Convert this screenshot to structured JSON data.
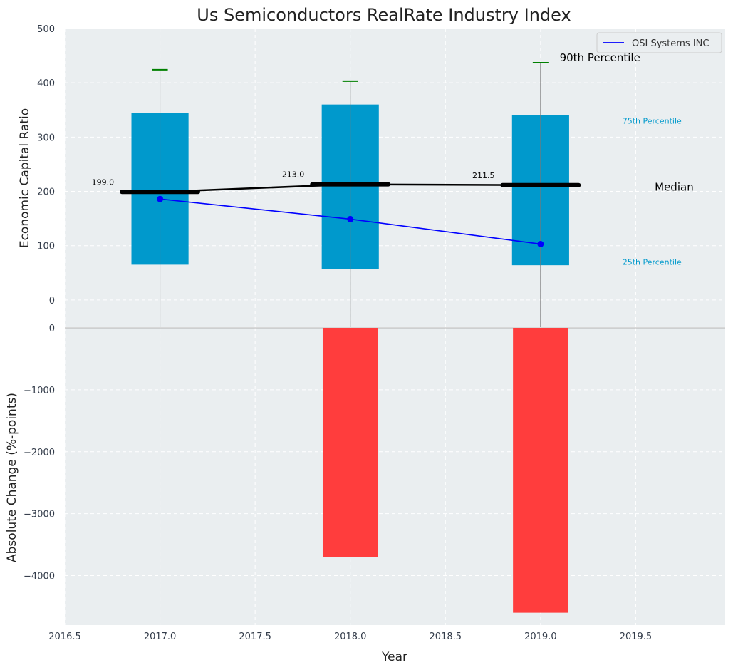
{
  "chart_data": {
    "type": "bar",
    "title": "Us Semiconductors RealRate Industry Index",
    "xlabel": "Year",
    "x_ticks": [
      "2016.5",
      "2017.0",
      "2017.5",
      "2018.0",
      "2018.5",
      "2019.0",
      "2019.5"
    ],
    "xlim": [
      2016.5,
      2019.97
    ],
    "years": [
      2017,
      2018,
      2019
    ],
    "top": {
      "ylabel": "Economic Capital Ratio",
      "ylim": [
        -50,
        500
      ],
      "y_ticks": [
        "0",
        "100",
        "200",
        "300",
        "400",
        "500"
      ],
      "p25": [
        65,
        57,
        64
      ],
      "p75": [
        345,
        360,
        341
      ],
      "p90": [
        424,
        403,
        437
      ],
      "median": [
        199.0,
        213.0,
        211.5
      ],
      "median_labels": [
        "199.0",
        "213.0",
        "211.5"
      ],
      "company": [
        186,
        149,
        103
      ],
      "labels": {
        "p90": "90th Percentile",
        "p75": "75th Percentile",
        "median": "Median",
        "p25": "25th Percentile"
      },
      "legend": {
        "entry": "OSI Systems INC",
        "placement": "top-right"
      }
    },
    "bottom": {
      "ylabel": "Absolute Change (%-points)",
      "ylim": [
        -4800,
        0
      ],
      "y_ticks": [
        "0",
        "−1000",
        "−2000",
        "−3000",
        "−4000"
      ],
      "values": [
        0,
        -3700,
        -4600
      ]
    },
    "colors": {
      "box": "#0099cc",
      "median": "#000000",
      "whisker_cap": "#008000",
      "company_line": "#0000ff",
      "change_bar": "#ff3d3d",
      "plot_bg": "#eaeef0",
      "grid": "#ffffff"
    },
    "grid": true
  }
}
